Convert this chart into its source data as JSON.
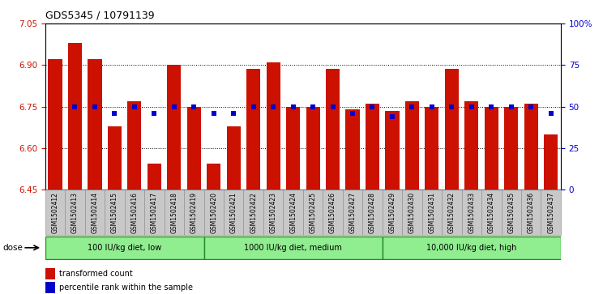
{
  "title": "GDS5345 / 10791139",
  "samples": [
    "GSM1502412",
    "GSM1502413",
    "GSM1502414",
    "GSM1502415",
    "GSM1502416",
    "GSM1502417",
    "GSM1502418",
    "GSM1502419",
    "GSM1502420",
    "GSM1502421",
    "GSM1502422",
    "GSM1502423",
    "GSM1502424",
    "GSM1502425",
    "GSM1502426",
    "GSM1502427",
    "GSM1502428",
    "GSM1502429",
    "GSM1502430",
    "GSM1502431",
    "GSM1502432",
    "GSM1502433",
    "GSM1502434",
    "GSM1502435",
    "GSM1502436",
    "GSM1502437"
  ],
  "bar_values": [
    6.92,
    6.98,
    6.92,
    6.68,
    6.77,
    6.545,
    6.9,
    6.75,
    6.545,
    6.68,
    6.885,
    6.91,
    6.75,
    6.75,
    6.885,
    6.74,
    6.76,
    6.735,
    6.77,
    6.75,
    6.885,
    6.77,
    6.75,
    6.75,
    6.76,
    6.65
  ],
  "percentile_values": [
    null,
    50,
    50,
    46,
    50,
    46,
    50,
    50,
    46,
    46,
    50,
    50,
    50,
    50,
    50,
    46,
    50,
    44,
    50,
    50,
    50,
    50,
    50,
    50,
    50,
    46
  ],
  "groups": [
    {
      "label": "100 IU/kg diet, low",
      "start": 0,
      "end": 8
    },
    {
      "label": "1000 IU/kg diet, medium",
      "start": 8,
      "end": 17
    },
    {
      "label": "10,000 IU/kg diet, high",
      "start": 17,
      "end": 26
    }
  ],
  "ylim": [
    6.45,
    7.05
  ],
  "yticks": [
    6.45,
    6.6,
    6.75,
    6.9,
    7.05
  ],
  "right_yticks": [
    0,
    25,
    50,
    75,
    100
  ],
  "bar_color": "#cc1100",
  "percentile_color": "#0000cc",
  "group_color": "#90ee90",
  "group_border_color": "#228B22",
  "dose_label": "dose",
  "legend_items": [
    {
      "label": "transformed count",
      "color": "#cc1100"
    },
    {
      "label": "percentile rank within the sample",
      "color": "#0000cc"
    }
  ]
}
